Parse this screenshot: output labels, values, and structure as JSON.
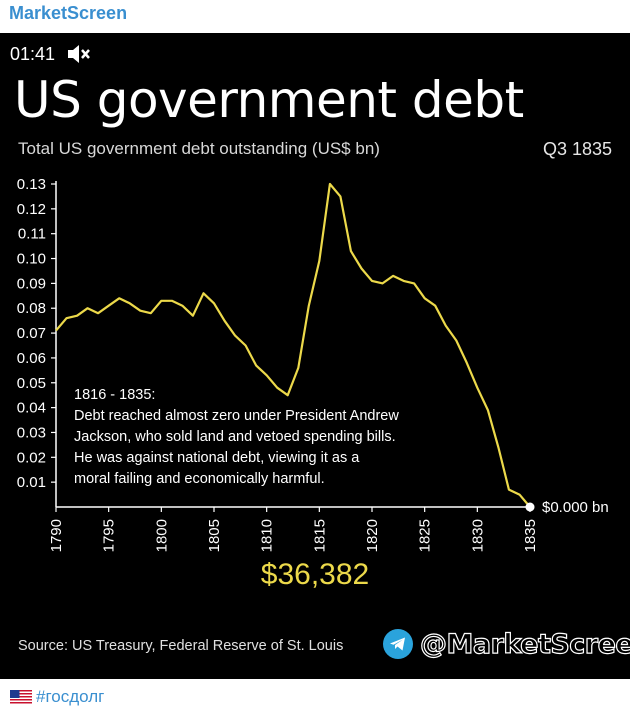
{
  "channel": {
    "name": "MarketScreen"
  },
  "video": {
    "timestamp": "01:41",
    "muted_icon": "speaker-muted-icon"
  },
  "header": {
    "title": "US government debt",
    "subtitle": "Total US government debt outstanding (US$ bn)",
    "period": "Q3 1835"
  },
  "annotation": {
    "heading": "1816 - 1835:",
    "lines": [
      "Debt reached almost zero under President Andrew",
      "Jackson, who sold land and vetoed spending bills.",
      "He was against national debt, viewing it as a",
      "moral failing and economically harmful."
    ]
  },
  "counter": "$36,382",
  "end_label": "$0.000 bn",
  "source": "Source: US Treasury, Federal Reserve of St. Louis",
  "brand": {
    "handle": "@MarketScreen",
    "icon": "telegram-icon"
  },
  "footer": {
    "flag": "us-flag-icon",
    "hashtag": "#госдолг"
  },
  "colors": {
    "line": "#ecd94a",
    "background": "#000000",
    "accent": "#3a8fd0"
  },
  "chart_data": {
    "type": "line",
    "title": "US government debt",
    "ylabel": "Total US government debt outstanding (US$ bn)",
    "xlabel": "",
    "xlim": [
      1790,
      1835
    ],
    "ylim": [
      0,
      0.13
    ],
    "x_ticks": [
      "1790",
      "1795",
      "1800",
      "1805",
      "1810",
      "1815",
      "1820",
      "1825",
      "1830",
      "1835"
    ],
    "y_ticks": [
      "0.01",
      "0.02",
      "0.03",
      "0.04",
      "0.05",
      "0.06",
      "0.07",
      "0.08",
      "0.09",
      "0.10",
      "0.11",
      "0.12",
      "0.13"
    ],
    "series": [
      {
        "name": "Debt",
        "x": [
          1790,
          1791,
          1792,
          1793,
          1794,
          1795,
          1796,
          1797,
          1798,
          1799,
          1800,
          1801,
          1802,
          1803,
          1804,
          1805,
          1806,
          1807,
          1808,
          1809,
          1810,
          1811,
          1812,
          1813,
          1814,
          1815,
          1816,
          1817,
          1818,
          1819,
          1820,
          1821,
          1822,
          1823,
          1824,
          1825,
          1826,
          1827,
          1828,
          1829,
          1830,
          1831,
          1832,
          1833,
          1834,
          1835
        ],
        "values": [
          0.071,
          0.076,
          0.077,
          0.08,
          0.078,
          0.081,
          0.084,
          0.082,
          0.079,
          0.078,
          0.083,
          0.083,
          0.081,
          0.077,
          0.086,
          0.082,
          0.075,
          0.069,
          0.065,
          0.057,
          0.053,
          0.048,
          0.045,
          0.056,
          0.081,
          0.099,
          0.13,
          0.125,
          0.103,
          0.096,
          0.091,
          0.09,
          0.093,
          0.091,
          0.09,
          0.084,
          0.081,
          0.073,
          0.067,
          0.058,
          0.048,
          0.039,
          0.024,
          0.007,
          0.005,
          0.0
        ]
      }
    ]
  }
}
